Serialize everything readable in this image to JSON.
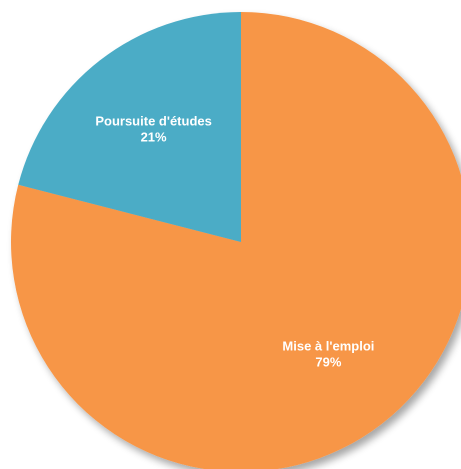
{
  "chart_data": {
    "type": "pie",
    "categories": [
      "Mise à l'emploi",
      "Poursuite d'études"
    ],
    "values": [
      79,
      21
    ],
    "value_labels": [
      "79%",
      "21%"
    ],
    "colors": [
      "#F79646",
      "#4BACC6"
    ],
    "title": "",
    "legend": "none",
    "start_angle_deg": 0,
    "direction": "clockwise"
  }
}
